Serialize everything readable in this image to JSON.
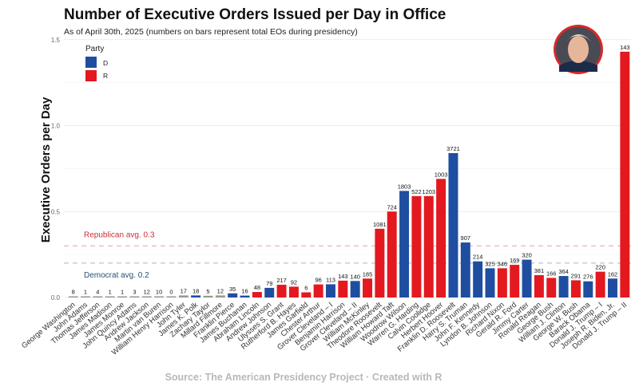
{
  "chart_data": {
    "type": "bar",
    "title": "Number of Executive Orders Issued per Day in Office",
    "subtitle": "As of April 30th, 2025 (numbers on bars represent total EOs during presidency)",
    "caption": "Source: The American Presidency Project  ·  Created with R",
    "xlabel": "",
    "ylabel": "Executive Orders per Day",
    "ylim": [
      0,
      1.5
    ],
    "yticks": [
      "0.0",
      "0.5",
      "1.0",
      "1.5"
    ],
    "grid": true,
    "legend": {
      "title": "Party",
      "position": "top-left",
      "entries": [
        {
          "label": "D",
          "color": "#1f4ea1"
        },
        {
          "label": "R",
          "color": "#e3191f"
        }
      ]
    },
    "party_colors": {
      "D": "#1f4ea1",
      "R": "#e3191f",
      "O": "#9a9a90"
    },
    "reference_lines": [
      {
        "label": "Republican avg. 0.3",
        "value": 0.3,
        "color": "#c8303a",
        "line_color": "#e5b5c0"
      },
      {
        "label": "Democrat avg. 0.2",
        "value": 0.2,
        "color": "#2a4f72",
        "line_color": "#c0c0d0"
      }
    ],
    "categories": [
      "George Washington",
      "John Adams",
      "Thomas Jefferson",
      "James Madison",
      "James Monroe",
      "John Quincy Adams",
      "Andrew Jackson",
      "Martin van Buren",
      "William Henry Harrison",
      "John Tyler",
      "James K. Polk",
      "Zachary Taylor",
      "Millard Fillmore",
      "Franklin Pierce",
      "James Buchanan",
      "Abraham Lincoln",
      "Andrew Johnson",
      "Ulysses S. Grant",
      "Rutherford B. Hayes",
      "James Garfield",
      "Chester Arthur",
      "Grover Cleveland – I",
      "Benjamin Harrison",
      "Grover Cleveland – II",
      "William McKinley",
      "Theodore Roosevelt",
      "William Howard Taft",
      "Woodrow Wilson",
      "Warren G. Harding",
      "Calvin Coolidge",
      "Herbert Hoover",
      "Franklin D. Roosevelt",
      "Harry S. Truman",
      "John F. Kennedy",
      "Lyndon B. Johnson",
      "Richard Nixon",
      "Gerald R. Ford",
      "Jimmy Carter",
      "Ronald Reagan",
      "George Bush",
      "William J. Clinton",
      "George W. Bush",
      "Barack Obama",
      "Donald J. Trump – I",
      "Joseph R. Biden, Jr.",
      "Donald J. Trump – II"
    ],
    "party": [
      "O",
      "O",
      "O",
      "O",
      "O",
      "O",
      "O",
      "O",
      "O",
      "O",
      "D",
      "O",
      "O",
      "D",
      "D",
      "R",
      "D",
      "R",
      "R",
      "R",
      "R",
      "D",
      "R",
      "D",
      "R",
      "R",
      "R",
      "D",
      "R",
      "R",
      "R",
      "D",
      "D",
      "D",
      "D",
      "R",
      "R",
      "D",
      "R",
      "R",
      "D",
      "R",
      "D",
      "R",
      "D",
      "R"
    ],
    "values": [
      0.003,
      0.001,
      0.001,
      0.0,
      0.0,
      0.002,
      0.004,
      0.007,
      0.0,
      0.012,
      0.012,
      0.01,
      0.012,
      0.024,
      0.011,
      0.032,
      0.056,
      0.074,
      0.063,
      0.03,
      0.076,
      0.077,
      0.098,
      0.096,
      0.11,
      0.4,
      0.5,
      0.62,
      0.59,
      0.59,
      0.69,
      0.84,
      0.32,
      0.21,
      0.17,
      0.17,
      0.19,
      0.22,
      0.13,
      0.114,
      0.125,
      0.1,
      0.094,
      0.15,
      0.11,
      1.43
    ],
    "totals": [
      "8",
      "1",
      "4",
      "1",
      "1",
      "3",
      "12",
      "10",
      "0",
      "17",
      "18",
      "5",
      "12",
      "35",
      "16",
      "48",
      "79",
      "217",
      "92",
      "6",
      "96",
      "113",
      "143",
      "140",
      "185",
      "1081",
      "724",
      "1803",
      "522",
      "1203",
      "1003",
      "3721",
      "907",
      "214",
      "325",
      "346",
      "169",
      "320",
      "381",
      "166",
      "364",
      "291",
      "276",
      "220",
      "162",
      "143"
    ]
  }
}
